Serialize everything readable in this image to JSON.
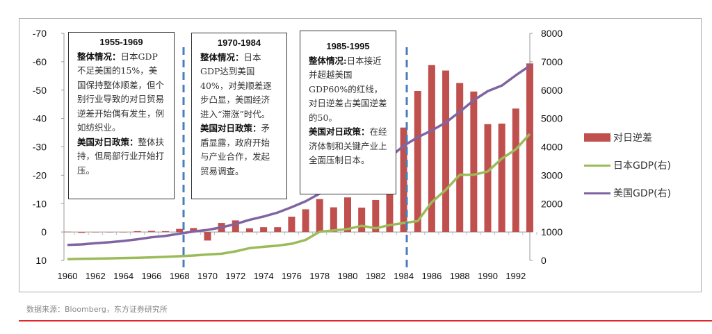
{
  "chart_data": {
    "type": "bar+line",
    "title": "",
    "categories": [
      1960,
      1961,
      1962,
      1963,
      1964,
      1965,
      1966,
      1967,
      1968,
      1969,
      1970,
      1971,
      1972,
      1973,
      1974,
      1975,
      1976,
      1977,
      1978,
      1979,
      1980,
      1981,
      1982,
      1983,
      1984,
      1985,
      1986,
      1987,
      1988,
      1989,
      1990,
      1991,
      1992,
      1993
    ],
    "x_tick_labels": [
      "1960",
      "1962",
      "1964",
      "1966",
      "1968",
      "1970",
      "1972",
      "1974",
      "1976",
      "1978",
      "1980",
      "1982",
      "1984",
      "1986",
      "1988",
      "1990",
      "1992"
    ],
    "left_axis": {
      "range": [
        10,
        -70
      ],
      "inverted": true,
      "ticks": [
        "-70",
        "-60",
        "-50",
        "-40",
        "-30",
        "-20",
        "-10",
        "0",
        "10"
      ]
    },
    "right_axis": {
      "range": [
        0,
        8000
      ],
      "ticks": [
        "8000",
        "7000",
        "6000",
        "5000",
        "4000",
        "3000",
        "2000",
        "1000",
        "0"
      ]
    },
    "series": [
      {
        "name": "对日逆差",
        "type": "bar",
        "axis": "left",
        "color": "#c0504d",
        "values": [
          -0.1,
          0.3,
          0,
          0,
          0,
          -0.3,
          -0.4,
          -0.3,
          -1.1,
          -1.4,
          3.0,
          -3.2,
          -4.1,
          -1.3,
          -1.7,
          -1.7,
          -5.4,
          -8.0,
          -11.6,
          -8.7,
          -12.2,
          -8.6,
          -11.3,
          -21.7,
          -36.8,
          -49.7,
          -58.8,
          -56.9,
          -52.5,
          -49.5,
          -38.0,
          -38.2,
          -43.5,
          -59.4
        ]
      },
      {
        "name": "日本GDP(右)",
        "type": "line",
        "axis": "right",
        "color": "#9bbb59",
        "values": [
          44,
          54,
          61,
          70,
          83,
          91,
          106,
          124,
          147,
          172,
          209,
          236,
          318,
          432,
          480,
          521,
          586,
          721,
          1010,
          1055,
          1105,
          1218,
          1134,
          1243,
          1318,
          1385,
          2051,
          2485,
          3015,
          3017,
          3133,
          3585,
          3909,
          4454
        ]
      },
      {
        "name": "美国GDP(右)",
        "type": "line",
        "axis": "right",
        "color": "#8064a2",
        "values": [
          543,
          563,
          605,
          638,
          686,
          744,
          815,
          862,
          942,
          1019,
          1073,
          1165,
          1280,
          1429,
          1545,
          1685,
          1874,
          2082,
          2352,
          2627,
          2857,
          3207,
          3344,
          3634,
          4037,
          4339,
          4580,
          4855,
          5236,
          5642,
          5963,
          6158,
          6520,
          6859
        ]
      }
    ],
    "grid": false,
    "legend_position": "right"
  },
  "annotations": {
    "boxes": [
      {
        "title": "1955-1969",
        "paras": [
          {
            "bold": "整体情况：",
            "text": "日本GDP不足美国的15%，美国保持整体顺差，但个别行业导致的对日贸易逆差开始偶有发生，例如纺织业。"
          },
          {
            "bold": "美国对日政策：",
            "text": "整体扶持，但局部行业开始打压。"
          }
        ]
      },
      {
        "title": "1970-1984",
        "paras": [
          {
            "bold": "整体情况：",
            "text": "日本GDP达到美国40%，对美顺差逐步凸显，美国经济进入“滞涨”时代。"
          },
          {
            "bold": "美国对日政策：",
            "text": "矛盾显露，政府开始与产业合作，发起贸易调查。"
          }
        ]
      },
      {
        "title": "1985-1995",
        "paras": [
          {
            "bold": "整体情况:",
            "text": "日本接近并超越美国GDP60%的红线，对日逆差占美国逆差的50。"
          },
          {
            "bold": "美国对日政策：",
            "text": "在经济体制和关键产业上全面压制日本。"
          }
        ]
      }
    ],
    "divider_years": [
      "1968/1969",
      "1984/1985"
    ],
    "divider_color": "#4a7ebb"
  },
  "source": "数据来源：Bloomberg，东方证券研究所"
}
